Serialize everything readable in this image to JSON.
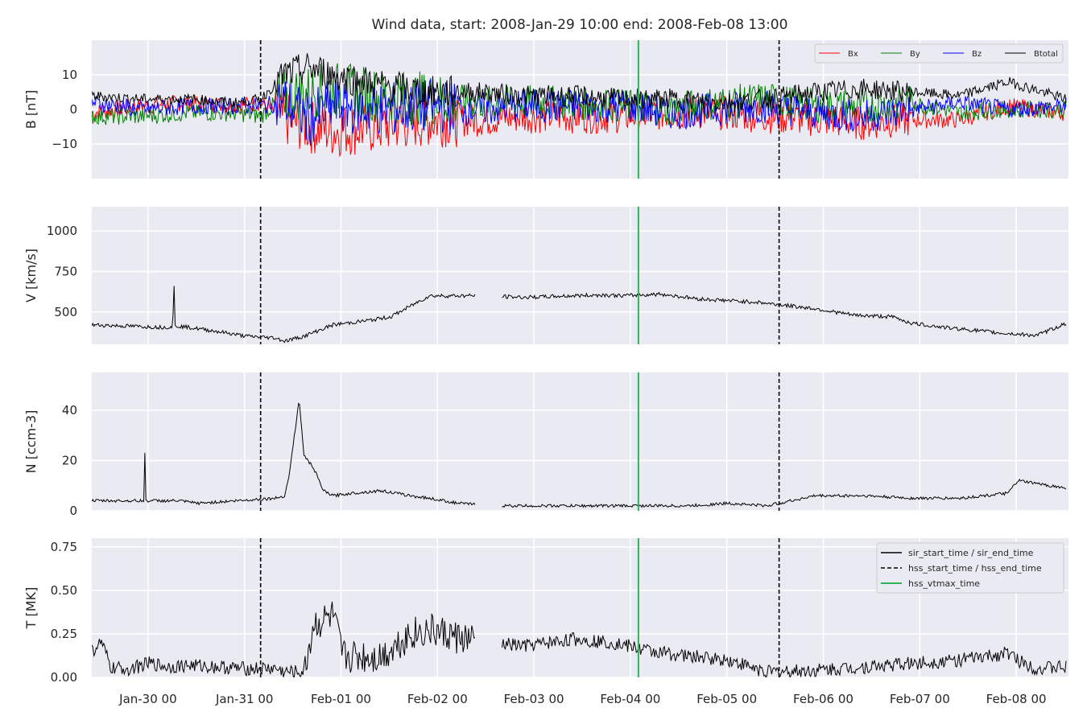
{
  "chart_data": {
    "type": "line",
    "title": "Wind data, start: 2008-Jan-29 10:00  end: 2008-Feb-08 13:00",
    "x_range": [
      "2008-01-29 10:00",
      "2008-02-08 13:00"
    ],
    "x_ticks": [
      "Jan-30 00",
      "Jan-31 00",
      "Feb-01 00",
      "Feb-02 00",
      "Feb-03 00",
      "Feb-04 00",
      "Feb-05 00",
      "Feb-06 00",
      "Feb-07 00",
      "Feb-08 00"
    ],
    "grid": true,
    "events": {
      "hss_start_time": "2008-01-31 04:00",
      "hss_vtmax_time": "2008-02-04 02:00",
      "hss_end_time": "2008-02-05 13:00"
    },
    "legend_bottom": [
      {
        "label": "sir_start_time / sir_end_time",
        "style": "solid",
        "color": "#000000"
      },
      {
        "label": "hss_start_time / hss_end_time",
        "style": "dashed",
        "color": "#000000"
      },
      {
        "label": "hss_vtmax_time",
        "style": "solid",
        "color": "#2eb35a"
      }
    ],
    "panels": [
      {
        "name": "magnetic-field",
        "ylabel": "B [nT]",
        "ylim": [
          -20,
          20
        ],
        "yticks": [
          10,
          0,
          -10
        ],
        "ytick_labels": [
          "10",
          "0",
          "−10"
        ],
        "legend_position": "top-right",
        "series": [
          {
            "name": "Bx",
            "color": "#ff0000",
            "x_days": [
              0,
              0.5,
              1,
              1.5,
              1.75,
              2.0,
              2.25,
              2.5,
              3,
              3.5,
              4,
              4.5,
              5,
              5.5,
              6,
              6.5,
              7,
              7.5,
              8,
              8.5,
              9,
              9.5,
              10.1
            ],
            "values": [
              -1,
              1,
              2,
              1,
              2,
              -3,
              -5,
              -6,
              -5,
              -3,
              -3,
              -2,
              -2,
              -2,
              -1,
              -1,
              -2,
              -3,
              -4,
              -3,
              -3,
              1,
              -1
            ]
          },
          {
            "name": "By",
            "color": "#008000",
            "x_days": [
              0,
              0.5,
              1,
              1.5,
              1.75,
              2.0,
              2.25,
              2.5,
              3,
              3.5,
              4,
              4.5,
              5,
              5.5,
              6,
              6.5,
              7,
              7.5,
              8,
              8.5,
              9,
              9.5,
              10.1
            ],
            "values": [
              -2,
              -2,
              -1,
              -1,
              -2,
              4,
              5,
              6,
              4,
              3,
              2,
              2,
              2,
              1,
              0,
              2,
              3,
              1,
              1,
              2,
              -1,
              0,
              0
            ]
          },
          {
            "name": "Bz",
            "color": "#0000ff",
            "x_days": [
              0,
              0.5,
              1,
              1.5,
              1.75,
              2.0,
              2.25,
              2.5,
              3,
              3.5,
              4,
              4.5,
              5,
              5.5,
              6,
              6.5,
              7,
              7.5,
              8,
              8.5,
              9,
              9.5,
              10.1
            ],
            "values": [
              2,
              0,
              1,
              1,
              1,
              2,
              -3,
              1,
              0,
              1,
              0,
              1,
              1,
              1,
              -1,
              0,
              1,
              -1,
              -2,
              0,
              2,
              0,
              1
            ]
          },
          {
            "name": "Btotal",
            "color": "#000000",
            "x_days": [
              0,
              0.5,
              1,
              1.5,
              1.75,
              2.0,
              2.25,
              2.5,
              3,
              3.5,
              4,
              4.5,
              5,
              5.5,
              6,
              6.5,
              7,
              7.5,
              8,
              8.5,
              9,
              9.5,
              10.1
            ],
            "values": [
              4,
              3,
              3,
              2,
              3,
              10,
              12,
              10,
              7,
              5,
              5,
              4,
              4,
              3,
              3,
              2,
              3,
              5,
              6,
              5,
              4,
              8,
              3
            ]
          }
        ]
      },
      {
        "name": "velocity",
        "ylabel": "V [km/s]",
        "ylim": [
          300,
          1150
        ],
        "yticks": [
          1000,
          750,
          500
        ],
        "ytick_labels": [
          "1000",
          "750",
          "500"
        ],
        "series": [
          {
            "name": "",
            "color": "#000000",
            "x_days": [
              0,
              0.5,
              0.75,
              0.84,
              0.85,
              0.86,
              1,
              1.3,
              1.6,
              1.9,
              2.0,
              2.2,
              2.5,
              2.9,
              3.1,
              3.5,
              4,
              4.5,
              5,
              5.3,
              5.5,
              5.9,
              6.3,
              6.9,
              7.5,
              7.9,
              8.3,
              8.5,
              8.9,
              9.1,
              9.4,
              9.8,
              10.1
            ],
            "values": [
              420,
              410,
              405,
              410,
              750,
              415,
              405,
              380,
              350,
              340,
              320,
              350,
              420,
              450,
              470,
              600,
              600,
              590,
              600,
              605,
              600,
              610,
              580,
              560,
              520,
              480,
              470,
              430,
              400,
              390,
              370,
              355,
              430
            ]
          }
        ]
      },
      {
        "name": "density",
        "ylabel": "N [ccm-3]",
        "ylim": [
          0,
          55
        ],
        "yticks": [
          40,
          20,
          0
        ],
        "ytick_labels": [
          "40",
          "20",
          "0"
        ],
        "series": [
          {
            "name": "",
            "color": "#000000",
            "x_days": [
              0,
              0.5,
              0.54,
              0.55,
              0.56,
              0.9,
              1.1,
              1.5,
              1.9,
              2.0,
              2.05,
              2.1,
              2.15,
              2.2,
              2.3,
              2.4,
              2.5,
              2.7,
              3.0,
              3.3,
              3.5,
              3.8,
              4.2,
              4.6,
              5.0,
              5.4,
              5.8,
              6.2,
              6.6,
              7.0,
              7.5,
              8.0,
              8.5,
              9.0,
              9.5,
              9.6,
              10.1
            ],
            "values": [
              4,
              4,
              4,
              23,
              4,
              4,
              3,
              4,
              5,
              6,
              15,
              30,
              44,
              22,
              17,
              8,
              6,
              7,
              8,
              6,
              5,
              3,
              2,
              2,
              2,
              2,
              2,
              2,
              3,
              2,
              6,
              6,
              5,
              5,
              7,
              12,
              9
            ]
          }
        ]
      },
      {
        "name": "temperature",
        "ylabel": "T [MK]",
        "ylim": [
          0,
          0.8
        ],
        "yticks": [
          0.75,
          0.5,
          0.25,
          0.0
        ],
        "ytick_labels": [
          "0.75",
          "0.50",
          "0.25",
          "0.00"
        ],
        "legend_position": "top-right",
        "series": [
          {
            "name": "",
            "color": "#000000",
            "x_days": [
              0,
              0.1,
              0.2,
              0.4,
              0.6,
              0.8,
              1.0,
              1.3,
              1.6,
              1.9,
              2.0,
              2.2,
              2.3,
              2.5,
              2.6,
              3.0,
              3.3,
              3.5,
              4.0,
              4.5,
              5.0,
              5.4,
              5.8,
              6.2,
              6.6,
              7.0,
              7.5,
              8.0,
              8.5,
              9.0,
              9.3,
              9.5,
              9.6,
              9.8,
              10.1
            ],
            "values": [
              0.15,
              0.2,
              0.05,
              0.05,
              0.08,
              0.06,
              0.07,
              0.06,
              0.05,
              0.05,
              0.03,
              0.03,
              0.3,
              0.35,
              0.12,
              0.12,
              0.25,
              0.27,
              0.2,
              0.18,
              0.22,
              0.2,
              0.15,
              0.12,
              0.1,
              0.03,
              0.04,
              0.06,
              0.08,
              0.1,
              0.12,
              0.14,
              0.1,
              0.05,
              0.06
            ]
          }
        ]
      }
    ]
  }
}
